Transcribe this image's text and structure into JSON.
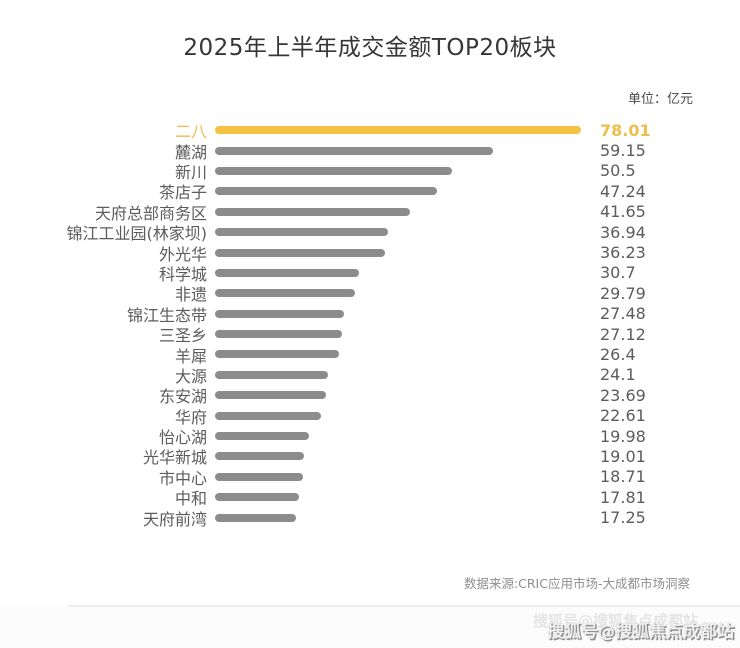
{
  "title": "2025年上半年成交金额TOP20板块",
  "unit_label": "单位：亿元",
  "source": "数据来源:CRIC应用市场-大成都市场洞察",
  "watermark": "搜狐号@搜狐焦点成都站",
  "colors": {
    "bar_highlight": "#F5C243",
    "bar": "#8C8C8C",
    "text_highlight": "#EDBE4B",
    "label": "#5C5C5C",
    "title": "#363636",
    "source_text": "#8E8E8E"
  },
  "chart_data": {
    "type": "bar",
    "orientation": "horizontal",
    "title": "2025年上半年成交金额TOP20板块",
    "unit": "亿元",
    "xlabel": "",
    "ylabel": "",
    "xlim": [
      0,
      78.01
    ],
    "grid": false,
    "legend": false,
    "highlight_index": 0,
    "categories": [
      "二八",
      "麓湖",
      "新川",
      "茶店子",
      "天府总部商务区",
      "锦江工业园(林家坝)",
      "外光华",
      "科学城",
      "非遗",
      "锦江生态带",
      "三圣乡",
      "羊犀",
      "大源",
      "东安湖",
      "华府",
      "怡心湖",
      "光华新城",
      "市中心",
      "中和",
      "天府前湾"
    ],
    "values": [
      78.01,
      59.15,
      50.5,
      47.24,
      41.65,
      36.94,
      36.23,
      30.7,
      29.79,
      27.48,
      27.12,
      26.4,
      24.1,
      23.69,
      22.61,
      19.98,
      19.01,
      18.71,
      17.81,
      17.25
    ]
  }
}
